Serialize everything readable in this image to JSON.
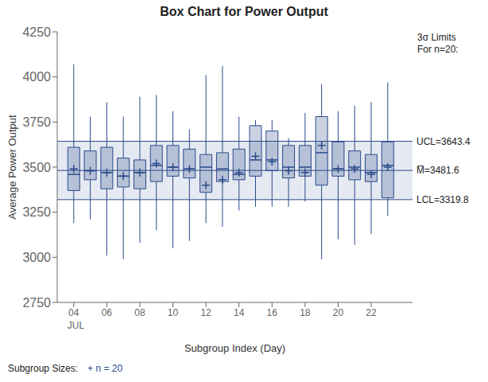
{
  "chart_data": {
    "type": "box",
    "title": "Box Chart for Power Output",
    "x_label": "Subgroup Index (Day)",
    "y_label": "Average Power Output",
    "x": [
      4,
      5,
      6,
      7,
      8,
      9,
      10,
      11,
      12,
      13,
      14,
      15,
      16,
      17,
      18,
      19,
      20,
      21,
      22,
      23
    ],
    "whisker_low": [
      3190,
      3210,
      3010,
      2990,
      3080,
      3150,
      3050,
      3090,
      3190,
      3170,
      3260,
      3280,
      3280,
      3280,
      3310,
      2990,
      3100,
      3070,
      3130,
      3230
    ],
    "q1": [
      3370,
      3430,
      3380,
      3390,
      3380,
      3420,
      3450,
      3440,
      3360,
      3420,
      3430,
      3450,
      3480,
      3440,
      3450,
      3400,
      3450,
      3430,
      3420,
      3330
    ],
    "median": [
      3460,
      3480,
      3470,
      3450,
      3470,
      3510,
      3500,
      3490,
      3500,
      3490,
      3460,
      3540,
      3540,
      3500,
      3500,
      3580,
      3490,
      3500,
      3470,
      3510
    ],
    "q3": [
      3610,
      3590,
      3610,
      3550,
      3540,
      3620,
      3620,
      3600,
      3570,
      3580,
      3600,
      3730,
      3700,
      3620,
      3620,
      3780,
      3640,
      3590,
      3570,
      3640
    ],
    "whisker_high": [
      4070,
      3780,
      3860,
      3780,
      3890,
      3900,
      3810,
      3710,
      4010,
      4060,
      3780,
      3760,
      3760,
      3660,
      3800,
      3960,
      3810,
      3840,
      3860,
      3970
    ],
    "mean": [
      3490,
      3480,
      3470,
      3450,
      3470,
      3520,
      3500,
      3490,
      3400,
      3430,
      3470,
      3560,
      3530,
      3480,
      3470,
      3620,
      3490,
      3490,
      3460,
      3500
    ],
    "xlim": [
      3.0,
      24.5
    ],
    "xticks": [
      {
        "value": 4,
        "label": "04"
      },
      {
        "value": 6,
        "label": "06"
      },
      {
        "value": 8,
        "label": "08"
      },
      {
        "value": 10,
        "label": "10"
      },
      {
        "value": 12,
        "label": "12"
      },
      {
        "value": 14,
        "label": "14"
      },
      {
        "value": 16,
        "label": "16"
      },
      {
        "value": 18,
        "label": "18"
      },
      {
        "value": 20,
        "label": "20"
      },
      {
        "value": 22,
        "label": "22"
      }
    ],
    "ylim": [
      2750,
      4250
    ],
    "yticks": [
      2750,
      3000,
      3250,
      3500,
      3750,
      4000,
      4250
    ],
    "control_limits": [
      {
        "value": 3643.4,
        "label": "UCL=3643.4"
      },
      {
        "value": 3481.6,
        "label": "M̅=3481.6"
      },
      {
        "value": 3319.8,
        "label": "LCL=3319.8"
      }
    ],
    "annotations": {
      "limits_note": "3σ Limits\nFor n=20:",
      "x_period": "JUL",
      "subgroup_label": "Subgroup Sizes:",
      "subgroup_sizes": "+ n = 20"
    },
    "color": "#2a4a8a",
    "marker": "plus"
  }
}
